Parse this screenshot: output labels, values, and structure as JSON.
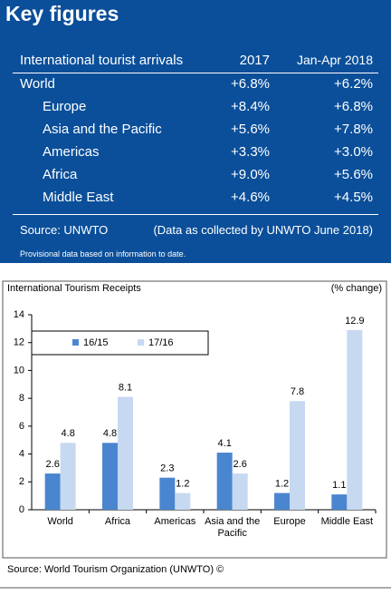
{
  "key_figures": {
    "title": "Key figures",
    "header": [
      "International tourist arrivals",
      "2017",
      "Jan-Apr 2018"
    ],
    "rows": [
      [
        "World",
        "+6.8%",
        "+6.2%"
      ],
      [
        "Europe",
        "+8.4%",
        "+6.8%"
      ],
      [
        "Asia and the Pacific",
        "+5.6%",
        "+7.8%"
      ],
      [
        "Americas",
        "+3.3%",
        "+3.0%"
      ],
      [
        "Africa",
        "+9.0%",
        "+5.6%"
      ],
      [
        "Middle East",
        "+4.6%",
        "+4.5%"
      ]
    ],
    "source": "Source: UNWTO",
    "source_note": "(Data as collected by UNWTO June 2018)",
    "footnote": "Provisional data based on information to date."
  },
  "chart_data": {
    "type": "bar",
    "title": "International Tourism Receipts",
    "unit_label": "(% change)",
    "categories": [
      "World",
      "Africa",
      "Americas",
      "Asia and the Pacific",
      "Europe",
      "Middle East"
    ],
    "series": [
      {
        "name": "16/15",
        "color": "#4a86d0",
        "values": [
          2.6,
          4.8,
          2.3,
          4.1,
          1.2,
          1.1
        ]
      },
      {
        "name": "17/16",
        "color": "#c6d9f1",
        "values": [
          4.8,
          8.1,
          1.2,
          2.6,
          7.8,
          12.9
        ]
      }
    ],
    "ylim": [
      0,
      14
    ],
    "yticks": [
      0,
      2,
      4,
      6,
      8,
      10,
      12,
      14
    ]
  },
  "source": "Source: World Tourism Organization (UNWTO) ©"
}
